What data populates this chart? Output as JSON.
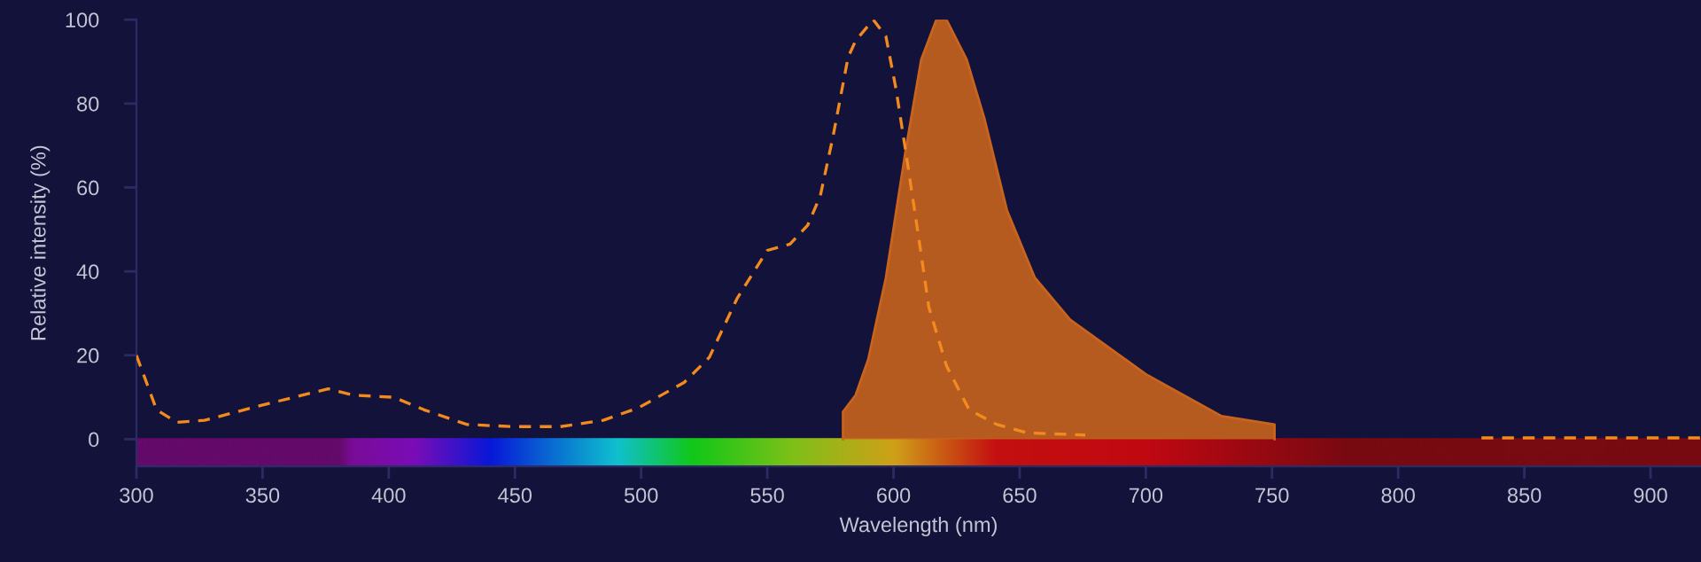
{
  "chart_data": {
    "type": "line",
    "xlabel": "Wavelength (nm)",
    "ylabel": "Relative intensity (%)",
    "xlim": [
      300,
      920
    ],
    "xticks": [
      300,
      350,
      400,
      450,
      500,
      550,
      600,
      650,
      700,
      750,
      800,
      850,
      900
    ],
    "ylim": [
      -6.5,
      100
    ],
    "yticks": [
      0,
      20,
      40,
      60,
      80,
      100
    ],
    "grid": false,
    "legend": false,
    "bands": [
      {
        "axis": "y",
        "from": -6.5,
        "to": 0
      }
    ],
    "series": [
      {
        "line_style": "dashed",
        "color": "#f28a1e",
        "x": [
          300,
          308,
          316,
          327,
          349,
          376,
          386,
          402,
          414,
          431,
          449,
          468,
          485,
          499,
          517,
          527,
          538,
          550,
          559,
          566,
          571,
          576,
          582,
          585,
          592,
          597,
          601,
          605,
          610,
          614,
          621,
          630,
          641,
          653,
          676,
          750,
          833,
          920
        ],
        "values": [
          20,
          7,
          4,
          4.5,
          8,
          12,
          10.5,
          10,
          7,
          3.5,
          3,
          3,
          4.5,
          7.5,
          13.5,
          19.5,
          33.5,
          45,
          46.5,
          51,
          58,
          72,
          91,
          95,
          100,
          96,
          83.5,
          68,
          48,
          31.5,
          17.5,
          7,
          3.5,
          1.5,
          1,
          null,
          0.3,
          0.3
        ]
      },
      {
        "type": "area",
        "color": "#c8641e",
        "x": [
          580,
          580,
          585,
          590,
          597,
          605,
          611,
          617,
          621,
          629,
          636,
          645,
          656,
          670,
          700,
          730,
          751,
          751
        ],
        "values": [
          0,
          6.5,
          10.5,
          19,
          38.5,
          69.5,
          90.5,
          100,
          100,
          90.5,
          76.5,
          54.5,
          38.5,
          28.5,
          15.5,
          5.5,
          3.5,
          0
        ]
      }
    ]
  }
}
